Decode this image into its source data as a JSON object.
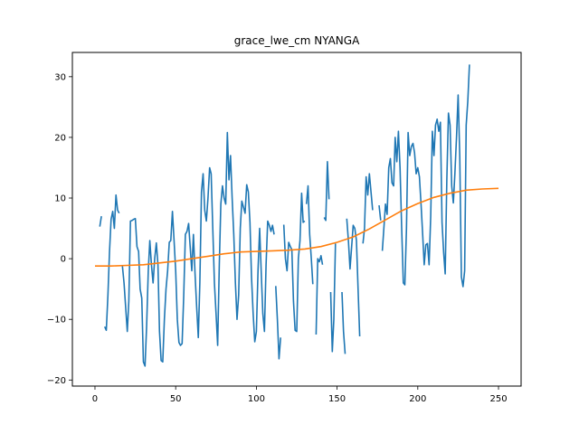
{
  "chart_data": {
    "type": "line",
    "title": "grace_lwe_cm NYANGA",
    "xlabel": "",
    "ylabel": "",
    "xlim": [
      -14,
      264
    ],
    "ylim": [
      -21,
      34
    ],
    "xticks": [
      0,
      50,
      100,
      150,
      200,
      250
    ],
    "yticks": [
      -20,
      -10,
      0,
      10,
      20,
      30
    ],
    "grid": false,
    "series": [
      {
        "color": "#1f77b4",
        "points": [
          [
            3,
            5.3
          ],
          [
            4,
            7.0
          ],
          [
            null,
            null
          ],
          [
            6,
            -11.2
          ],
          [
            7,
            -11.8
          ],
          [
            8,
            -6
          ],
          [
            9,
            1
          ],
          [
            10,
            6.5
          ],
          [
            11,
            7.8
          ],
          [
            12,
            5.0
          ],
          [
            13,
            10.5
          ],
          [
            14,
            8
          ],
          [
            15,
            7.5
          ],
          [
            null,
            null
          ],
          [
            17,
            -1.2
          ],
          [
            18,
            -4
          ],
          [
            19,
            -8
          ],
          [
            20,
            -12
          ],
          [
            21,
            -7
          ],
          [
            22,
            6.2
          ],
          [
            23,
            6.3
          ],
          [
            24,
            6.5
          ],
          [
            25,
            6.6
          ],
          [
            26,
            2
          ],
          [
            27,
            1.2
          ],
          [
            28,
            -5
          ],
          [
            29,
            -6.5
          ],
          [
            30,
            -17
          ],
          [
            31,
            -17.7
          ],
          [
            32,
            -11
          ],
          [
            33,
            -2
          ],
          [
            34,
            3
          ],
          [
            35,
            -1
          ],
          [
            36,
            -4
          ],
          [
            37,
            0
          ],
          [
            38,
            2.6
          ],
          [
            39,
            -1
          ],
          [
            40,
            -12
          ],
          [
            41,
            -16.8
          ],
          [
            42,
            -17
          ],
          [
            43,
            -10
          ],
          [
            44,
            -5
          ],
          [
            45,
            -2
          ],
          [
            46,
            2.7
          ],
          [
            47,
            3
          ],
          [
            48,
            7.8
          ],
          [
            49,
            3
          ],
          [
            50,
            -2
          ],
          [
            51,
            -10
          ],
          [
            52,
            -13.8
          ],
          [
            53,
            -14.3
          ],
          [
            54,
            -14
          ],
          [
            55,
            -6
          ],
          [
            56,
            4
          ],
          [
            57,
            4.5
          ],
          [
            58,
            5.8
          ],
          [
            59,
            2
          ],
          [
            60,
            -2
          ],
          [
            61,
            4
          ],
          [
            62,
            -2.5
          ],
          [
            63,
            -8
          ],
          [
            64,
            -13
          ],
          [
            65,
            -4
          ],
          [
            66,
            11
          ],
          [
            67,
            14
          ],
          [
            68,
            8
          ],
          [
            69,
            6.2
          ],
          [
            70,
            10
          ],
          [
            71,
            15
          ],
          [
            72,
            14
          ],
          [
            73,
            5
          ],
          [
            74,
            -4
          ],
          [
            75,
            -9
          ],
          [
            76,
            -14.3
          ],
          [
            77,
            -1
          ],
          [
            78,
            9
          ],
          [
            79,
            12
          ],
          [
            80,
            10
          ],
          [
            81,
            9
          ],
          [
            82,
            20.8
          ],
          [
            83,
            13
          ],
          [
            84,
            17
          ],
          [
            85,
            10
          ],
          [
            86,
            4
          ],
          [
            87,
            -4
          ],
          [
            88,
            -10
          ],
          [
            89,
            -6
          ],
          [
            90,
            5
          ],
          [
            91,
            9.5
          ],
          [
            92,
            8.5
          ],
          [
            93,
            7.5
          ],
          [
            94,
            12.2
          ],
          [
            95,
            11
          ],
          [
            96,
            6
          ],
          [
            97,
            -3
          ],
          [
            98,
            -9
          ],
          [
            99,
            -13.7
          ],
          [
            100,
            -12
          ],
          [
            101,
            -2
          ],
          [
            102,
            5
          ],
          [
            103,
            -2
          ],
          [
            104,
            -9
          ],
          [
            105,
            -12
          ],
          [
            106,
            -1
          ],
          [
            107,
            6.2
          ],
          [
            108,
            5.5
          ],
          [
            109,
            4.5
          ],
          [
            110,
            5.5
          ],
          [
            111,
            4
          ],
          [
            null,
            null
          ],
          [
            112,
            -4.5
          ],
          [
            113,
            -10
          ],
          [
            114,
            -16.5
          ],
          [
            115,
            -13
          ],
          [
            null,
            null
          ],
          [
            117,
            5.6
          ],
          [
            118,
            0
          ],
          [
            119,
            -2
          ],
          [
            120,
            2.7
          ],
          [
            121,
            2
          ],
          [
            122,
            1.5
          ],
          [
            123,
            -7
          ],
          [
            124,
            -11.8
          ],
          [
            125,
            -12
          ],
          [
            126,
            0
          ],
          [
            127,
            3
          ],
          [
            128,
            10.8
          ],
          [
            129,
            6
          ],
          [
            130,
            6.2
          ],
          [
            null,
            null
          ],
          [
            131,
            9
          ],
          [
            132,
            12
          ],
          [
            133,
            4
          ],
          [
            134,
            0
          ],
          [
            135,
            -4.2
          ],
          [
            null,
            null
          ],
          [
            137,
            -12.5
          ],
          [
            138,
            0
          ],
          [
            139,
            -0.5
          ],
          [
            140,
            0.5
          ],
          [
            141,
            -1
          ],
          [
            null,
            null
          ],
          [
            142,
            6.8
          ],
          [
            143,
            6.3
          ],
          [
            144,
            16
          ],
          [
            145,
            9.8
          ],
          [
            null,
            null
          ],
          [
            146,
            -5.5
          ],
          [
            147,
            -15.3
          ],
          [
            148,
            -10
          ],
          [
            149,
            2.5
          ],
          [
            null,
            null
          ],
          [
            153,
            -5.5
          ],
          [
            154,
            -12
          ],
          [
            155,
            -15.7
          ],
          [
            null,
            null
          ],
          [
            156,
            6.6
          ],
          [
            157,
            3
          ],
          [
            158,
            -1.7
          ],
          [
            159,
            2
          ],
          [
            160,
            5.5
          ],
          [
            161,
            5
          ],
          [
            162,
            3
          ],
          [
            163,
            -5
          ],
          [
            164,
            -12.8
          ],
          [
            null,
            null
          ],
          [
            166,
            2.5
          ],
          [
            167,
            5
          ],
          [
            168,
            13.5
          ],
          [
            169,
            10.5
          ],
          [
            170,
            14
          ],
          [
            171,
            11
          ],
          [
            172,
            8
          ],
          [
            null,
            null
          ],
          [
            176,
            8.8
          ],
          [
            177,
            6.3
          ],
          [
            null,
            null
          ],
          [
            178,
            1.3
          ],
          [
            179,
            5
          ],
          [
            180,
            9
          ],
          [
            181,
            7.3
          ],
          [
            182,
            15
          ],
          [
            183,
            16.5
          ],
          [
            184,
            12.5
          ],
          [
            185,
            12
          ],
          [
            186,
            20
          ],
          [
            187,
            16
          ],
          [
            188,
            21
          ],
          [
            189,
            15
          ],
          [
            190,
            5
          ],
          [
            191,
            -4
          ],
          [
            192,
            -4.3
          ],
          [
            193,
            5
          ],
          [
            194,
            20.8
          ],
          [
            195,
            17
          ],
          [
            196,
            18.5
          ],
          [
            197,
            19
          ],
          [
            198,
            17.5
          ],
          [
            199,
            14
          ],
          [
            200,
            15
          ],
          [
            201,
            13.5
          ],
          [
            202,
            9
          ],
          [
            203,
            4
          ],
          [
            204,
            -1
          ],
          [
            205,
            2.3
          ],
          [
            206,
            2.5
          ],
          [
            207,
            -1
          ],
          [
            208,
            7
          ],
          [
            209,
            21
          ],
          [
            210,
            17
          ],
          [
            211,
            22
          ],
          [
            212,
            23
          ],
          [
            213,
            21
          ],
          [
            214,
            22.5
          ],
          [
            215,
            6
          ],
          [
            216,
            1
          ],
          [
            217,
            -2.5
          ],
          [
            218,
            13
          ],
          [
            219,
            24
          ],
          [
            220,
            22
          ],
          [
            221,
            12
          ],
          [
            222,
            9.2
          ],
          [
            223,
            14
          ],
          [
            224,
            20
          ],
          [
            225,
            27
          ],
          [
            226,
            17
          ],
          [
            227,
            -3
          ],
          [
            228,
            -4.6
          ],
          [
            229,
            -2
          ],
          [
            230,
            22
          ],
          [
            231,
            26
          ],
          [
            232,
            32
          ]
        ]
      },
      {
        "color": "#ff7f0e",
        "points": [
          [
            0,
            -1.2
          ],
          [
            10,
            -1.2
          ],
          [
            20,
            -1.1
          ],
          [
            30,
            -1.0
          ],
          [
            40,
            -0.7
          ],
          [
            50,
            -0.4
          ],
          [
            60,
            0.0
          ],
          [
            70,
            0.4
          ],
          [
            80,
            0.8
          ],
          [
            90,
            1.1
          ],
          [
            100,
            1.2
          ],
          [
            110,
            1.3
          ],
          [
            120,
            1.4
          ],
          [
            130,
            1.6
          ],
          [
            140,
            2.0
          ],
          [
            150,
            2.7
          ],
          [
            160,
            3.6
          ],
          [
            170,
            4.9
          ],
          [
            180,
            6.4
          ],
          [
            190,
            7.9
          ],
          [
            200,
            9.1
          ],
          [
            210,
            10.1
          ],
          [
            220,
            10.8
          ],
          [
            230,
            11.3
          ],
          [
            240,
            11.5
          ],
          [
            250,
            11.6
          ]
        ]
      }
    ]
  }
}
